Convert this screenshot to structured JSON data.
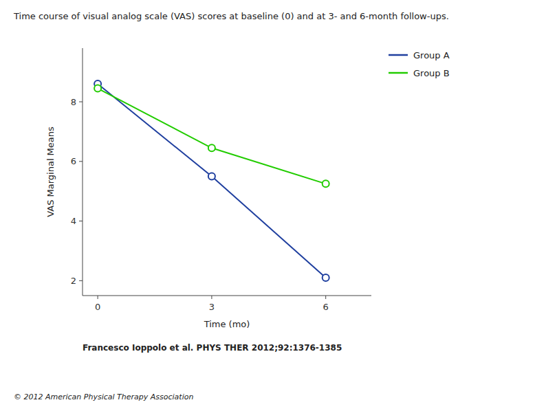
{
  "chart_data": {
    "type": "line",
    "title": "Time course of visual analog scale (VAS) scores at baseline (0) and at 3- and 6-month follow-ups.",
    "xlabel": "Time (mo)",
    "ylabel": "VAS Marginal Means",
    "x": [
      0,
      3,
      6
    ],
    "series": [
      {
        "name": "Group A",
        "color": "#1f3f9f",
        "values": [
          8.6,
          5.5,
          2.1
        ]
      },
      {
        "name": "Group B",
        "color": "#22cc00",
        "values": [
          8.45,
          6.45,
          5.25
        ]
      }
    ],
    "xlim": [
      -0.4,
      7.2
    ],
    "xticks": [
      0,
      3,
      6
    ],
    "ylim": [
      1.5,
      9.8
    ],
    "yticks": [
      2,
      4,
      6,
      8
    ],
    "marker": "circle",
    "grid": false,
    "legend": "right",
    "annotations": [
      "Francesco Ioppolo et al. PHYS THER 2012;92:1376-1385",
      "© 2012 American Physical Therapy Association"
    ]
  }
}
